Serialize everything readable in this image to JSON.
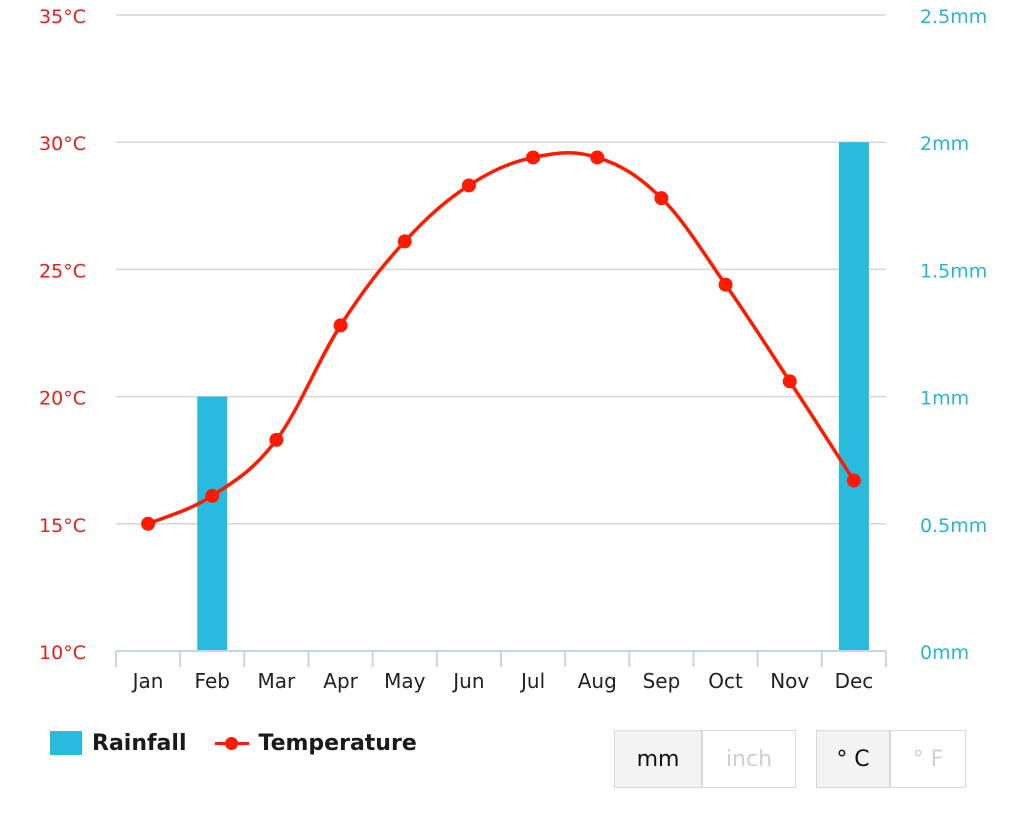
{
  "chart_data": {
    "type": "bar+line",
    "categories": [
      "Jan",
      "Feb",
      "Mar",
      "Apr",
      "May",
      "Jun",
      "Jul",
      "Aug",
      "Sep",
      "Oct",
      "Nov",
      "Dec"
    ],
    "series": [
      {
        "name": "Rainfall",
        "type": "bar",
        "axis": "right",
        "unit": "mm",
        "color": "#29bbde",
        "values": [
          0,
          1,
          0,
          0,
          0,
          0,
          0,
          0,
          0,
          0,
          0,
          2
        ]
      },
      {
        "name": "Temperature",
        "type": "line",
        "axis": "left",
        "unit": "°C",
        "color": "#ff1a00",
        "values": [
          15.0,
          16.1,
          18.3,
          22.8,
          26.1,
          28.3,
          29.4,
          29.4,
          27.8,
          24.4,
          20.6,
          16.7
        ]
      }
    ],
    "y_left": {
      "ylim": [
        10,
        35
      ],
      "ticks": [
        35,
        30,
        25,
        20,
        15,
        10
      ],
      "tick_labels": [
        "35°C",
        "30°C",
        "25°C",
        "20°C",
        "15°C",
        "10°C"
      ],
      "color": "#e8201b"
    },
    "y_right": {
      "ylim": [
        0,
        2.5
      ],
      "ticks": [
        2.5,
        2,
        1.5,
        1,
        0.5,
        0
      ],
      "tick_labels": [
        "2.5mm",
        "2mm",
        "1.5mm",
        "1mm",
        "0.5mm",
        "0mm"
      ],
      "color": "#29b4d4"
    },
    "grid": true,
    "legend": "bottom-left"
  },
  "legend": {
    "rainfall_label": "Rainfall",
    "temperature_label": "Temperature"
  },
  "controls": {
    "unit_toggle": {
      "mm_label": "mm",
      "inch_label": "inch",
      "selected": "mm"
    },
    "temp_toggle": {
      "c_label": "° C",
      "f_label": "° F",
      "selected": "° C"
    }
  }
}
